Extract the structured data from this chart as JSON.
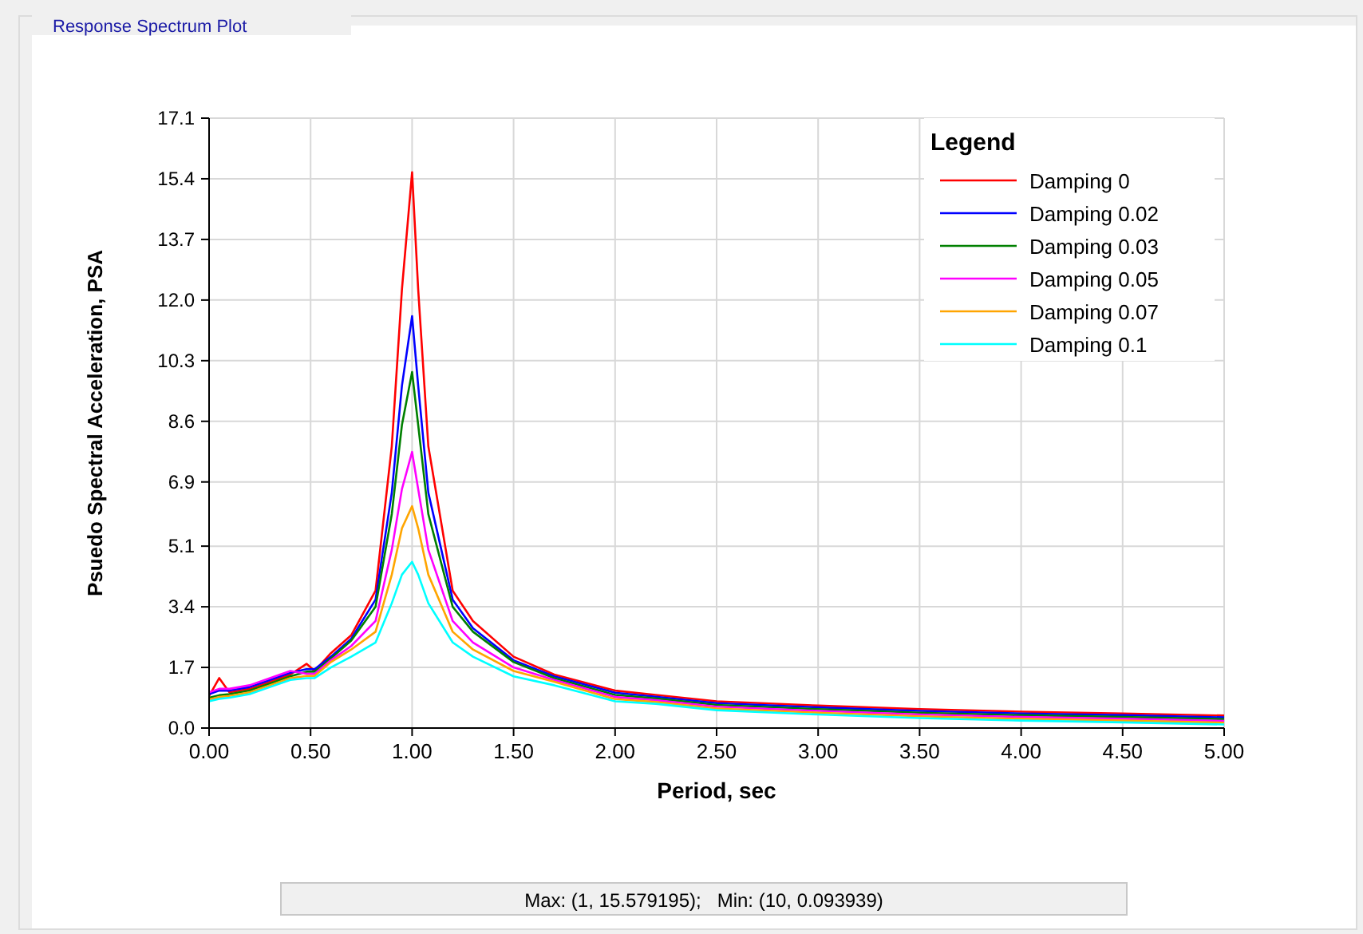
{
  "chart_data": {
    "type": "line",
    "title": "Response Spectrum Plot",
    "xlabel": "Period, sec",
    "ylabel": "Psuedo Spectral Acceleration, PSA",
    "legend_title": "Legend",
    "legend": "top right",
    "grid": true,
    "marker": "none",
    "line_style": "solid",
    "xlim": [
      0,
      5
    ],
    "xticks": [
      {
        "value": 0,
        "label": "0.00"
      },
      {
        "value": 0.5,
        "label": "0.50"
      },
      {
        "value": 1,
        "label": "1.00"
      },
      {
        "value": 1.5,
        "label": "1.50"
      },
      {
        "value": 2,
        "label": "2.00"
      },
      {
        "value": 2.5,
        "label": "2.50"
      },
      {
        "value": 3,
        "label": "3.00"
      },
      {
        "value": 3.5,
        "label": "3.50"
      },
      {
        "value": 4,
        "label": "4.00"
      },
      {
        "value": 4.5,
        "label": "4.50"
      },
      {
        "value": 5,
        "label": "5.00"
      }
    ],
    "ylim": [
      0,
      17.1
    ],
    "yticks": [
      {
        "value": 0,
        "label": "0.0"
      },
      1.7,
      3.4,
      5.1,
      6.9,
      8.6,
      10.3,
      {
        "value": 12,
        "label": "12.0"
      },
      13.7,
      15.4,
      17.1
    ],
    "x": [
      0,
      0.05,
      0.1,
      0.2,
      0.3,
      0.4,
      0.48,
      0.52,
      0.6,
      0.7,
      0.82,
      0.9,
      0.95,
      1.0,
      1.03,
      1.08,
      1.2,
      1.3,
      1.5,
      1.7,
      2.0,
      2.2,
      2.5,
      3.0,
      3.5,
      4.0,
      4.5,
      5.0
    ],
    "series": [
      {
        "name": "Damping 0",
        "color": "#ff0000",
        "values": [
          0.9,
          1.4,
          1.0,
          1.1,
          1.3,
          1.5,
          1.8,
          1.6,
          2.1,
          2.6,
          3.85,
          7.9,
          12.3,
          15.58,
          12.3,
          7.9,
          3.85,
          3.0,
          2.0,
          1.5,
          1.05,
          0.93,
          0.75,
          0.63,
          0.53,
          0.46,
          0.41,
          0.35
        ]
      },
      {
        "name": "Damping 0.02",
        "color": "#0000ff",
        "values": [
          0.95,
          1.05,
          1.05,
          1.15,
          1.35,
          1.55,
          1.65,
          1.65,
          2.0,
          2.5,
          3.6,
          6.6,
          9.6,
          11.55,
          9.6,
          6.6,
          3.6,
          2.8,
          1.9,
          1.45,
          0.99,
          0.88,
          0.7,
          0.58,
          0.48,
          0.41,
          0.36,
          0.3
        ]
      },
      {
        "name": "Damping 0.03",
        "color": "#008000",
        "values": [
          0.85,
          0.92,
          0.95,
          1.05,
          1.25,
          1.45,
          1.58,
          1.58,
          1.95,
          2.45,
          3.4,
          6.0,
          8.5,
          9.98,
          8.5,
          6.0,
          3.4,
          2.7,
          1.85,
          1.4,
          0.93,
          0.83,
          0.65,
          0.53,
          0.43,
          0.36,
          0.31,
          0.25
        ]
      },
      {
        "name": "Damping 0.05",
        "color": "#ff00ff",
        "values": [
          1.0,
          1.1,
          1.1,
          1.2,
          1.4,
          1.6,
          1.52,
          1.52,
          1.9,
          2.3,
          3.0,
          5.0,
          6.7,
          7.74,
          6.7,
          5.0,
          3.0,
          2.4,
          1.7,
          1.35,
          0.87,
          0.78,
          0.6,
          0.48,
          0.38,
          0.31,
          0.26,
          0.2
        ]
      },
      {
        "name": "Damping 0.07",
        "color": "#ffa500",
        "values": [
          0.8,
          0.87,
          0.9,
          1.0,
          1.2,
          1.4,
          1.46,
          1.46,
          1.85,
          2.2,
          2.7,
          4.3,
          5.6,
          6.22,
          5.6,
          4.3,
          2.7,
          2.2,
          1.6,
          1.3,
          0.81,
          0.73,
          0.55,
          0.43,
          0.33,
          0.26,
          0.21,
          0.15
        ]
      },
      {
        "name": "Damping 0.1",
        "color": "#00ffff",
        "values": [
          0.75,
          0.82,
          0.85,
          0.95,
          1.15,
          1.35,
          1.4,
          1.4,
          1.7,
          2.0,
          2.4,
          3.5,
          4.3,
          4.66,
          4.3,
          3.5,
          2.4,
          2.0,
          1.45,
          1.2,
          0.75,
          0.68,
          0.5,
          0.38,
          0.28,
          0.21,
          0.16,
          0.1
        ]
      }
    ],
    "annotations": [
      "Max: (1, 15.579195);   Min: (10, 0.093939)"
    ]
  }
}
